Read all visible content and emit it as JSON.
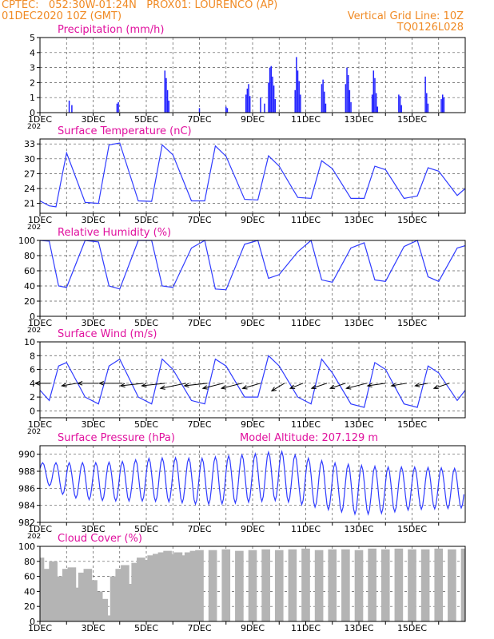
{
  "header": {
    "line1": "CPTEC:   052:30W-01:24N   PROX01: LOURENCO (AP)",
    "line2": "01DEC2020 10Z (GMT)",
    "grid_note": "Vertical Grid Line: 10Z",
    "code": "TQ0126L028"
  },
  "x_ticks": [
    "1DEC",
    "3DEC",
    "5DEC",
    "7DEC",
    "9DEC",
    "11DEC",
    "13DEC",
    "15DEC"
  ],
  "x_sublabel": "202",
  "colors": {
    "title": "#e0109e",
    "line": "#2f3bff",
    "bar": "#2020ff",
    "cloud": "#b4b4b4",
    "header": "#f08a24",
    "axis": "#000000"
  },
  "chart_data": [
    {
      "id": "precip",
      "type": "bar",
      "title": "Precipitation (mm/h)",
      "ylim": [
        0,
        5
      ],
      "yticks": [
        0,
        1,
        2,
        3,
        4,
        5
      ],
      "x_unit": "day index from 1DEC",
      "events": [
        {
          "x": 1.1,
          "y": 0.8
        },
        {
          "x": 1.2,
          "y": 0.5
        },
        {
          "x": 2.9,
          "y": 0.6
        },
        {
          "x": 2.95,
          "y": 0.7
        },
        {
          "x": 4.7,
          "y": 2.8
        },
        {
          "x": 4.75,
          "y": 2.3
        },
        {
          "x": 4.8,
          "y": 1.5
        },
        {
          "x": 4.85,
          "y": 0.8
        },
        {
          "x": 6.0,
          "y": 0.3
        },
        {
          "x": 7.0,
          "y": 0.4
        },
        {
          "x": 7.05,
          "y": 0.3
        },
        {
          "x": 7.75,
          "y": 1.2
        },
        {
          "x": 7.8,
          "y": 1.6
        },
        {
          "x": 7.85,
          "y": 1.9
        },
        {
          "x": 7.9,
          "y": 1.1
        },
        {
          "x": 8.3,
          "y": 1.0
        },
        {
          "x": 8.45,
          "y": 0.6
        },
        {
          "x": 8.6,
          "y": 2.0
        },
        {
          "x": 8.65,
          "y": 3.0
        },
        {
          "x": 8.7,
          "y": 3.1
        },
        {
          "x": 8.75,
          "y": 2.4
        },
        {
          "x": 8.8,
          "y": 1.8
        },
        {
          "x": 8.85,
          "y": 0.9
        },
        {
          "x": 9.6,
          "y": 1.5
        },
        {
          "x": 9.65,
          "y": 3.7
        },
        {
          "x": 9.7,
          "y": 2.8
        },
        {
          "x": 9.75,
          "y": 2.1
        },
        {
          "x": 9.8,
          "y": 1.2
        },
        {
          "x": 10.6,
          "y": 1.9
        },
        {
          "x": 10.65,
          "y": 2.2
        },
        {
          "x": 10.7,
          "y": 1.4
        },
        {
          "x": 10.75,
          "y": 0.6
        },
        {
          "x": 11.5,
          "y": 1.9
        },
        {
          "x": 11.55,
          "y": 3.0
        },
        {
          "x": 11.6,
          "y": 2.5
        },
        {
          "x": 11.65,
          "y": 1.5
        },
        {
          "x": 11.7,
          "y": 0.7
        },
        {
          "x": 12.5,
          "y": 1.2
        },
        {
          "x": 12.55,
          "y": 2.8
        },
        {
          "x": 12.6,
          "y": 2.3
        },
        {
          "x": 12.65,
          "y": 1.3
        },
        {
          "x": 12.7,
          "y": 0.4
        },
        {
          "x": 13.5,
          "y": 1.2
        },
        {
          "x": 13.55,
          "y": 1.1
        },
        {
          "x": 13.6,
          "y": 0.5
        },
        {
          "x": 14.5,
          "y": 2.4
        },
        {
          "x": 14.55,
          "y": 1.3
        },
        {
          "x": 14.6,
          "y": 0.6
        },
        {
          "x": 15.1,
          "y": 0.9
        },
        {
          "x": 15.15,
          "y": 1.2
        },
        {
          "x": 15.2,
          "y": 1.0
        }
      ]
    },
    {
      "id": "temp",
      "type": "line",
      "title": "Surface Temperature (nC)",
      "ylim": [
        19,
        34
      ],
      "yticks": [
        21,
        24,
        27,
        30,
        33
      ],
      "x": [
        0.0,
        0.35,
        0.6,
        1.0,
        1.7,
        2.2,
        2.6,
        3.0,
        3.7,
        4.2,
        4.6,
        5.0,
        5.7,
        6.2,
        6.6,
        7.0,
        7.7,
        8.2,
        8.6,
        9.0,
        9.7,
        10.2,
        10.6,
        11.0,
        11.7,
        12.2,
        12.6,
        13.0,
        13.7,
        14.2,
        14.6,
        15.0,
        15.7,
        16.0
      ],
      "y": [
        21.5,
        20.5,
        20.3,
        31.2,
        21.2,
        21.0,
        32.8,
        33.2,
        21.5,
        21.4,
        32.8,
        30.8,
        21.5,
        21.5,
        32.6,
        30.5,
        21.8,
        21.7,
        30.6,
        28.5,
        22.2,
        22.0,
        29.6,
        28.0,
        22.0,
        22.0,
        28.5,
        27.8,
        22.0,
        22.5,
        28.2,
        27.5,
        22.6,
        24.0
      ]
    },
    {
      "id": "rh",
      "type": "line",
      "title": "Relative Humidity (%)",
      "ylim": [
        0,
        100
      ],
      "yticks": [
        0,
        20,
        40,
        60,
        80,
        100
      ],
      "x": [
        0.0,
        0.35,
        0.7,
        1.0,
        1.7,
        2.2,
        2.6,
        3.0,
        3.7,
        4.2,
        4.6,
        5.0,
        5.7,
        6.2,
        6.6,
        7.0,
        7.7,
        8.2,
        8.6,
        9.0,
        9.7,
        10.2,
        10.6,
        11.0,
        11.7,
        12.2,
        12.6,
        13.0,
        13.7,
        14.2,
        14.6,
        15.0,
        15.7,
        16.0
      ],
      "y": [
        100,
        99,
        40,
        38,
        100,
        98,
        40,
        36,
        100,
        100,
        40,
        38,
        90,
        100,
        36,
        35,
        95,
        100,
        50,
        55,
        85,
        100,
        48,
        45,
        90,
        97,
        48,
        46,
        92,
        100,
        52,
        46,
        90,
        93
      ]
    },
    {
      "id": "wind",
      "type": "line",
      "title": "Surface Wind (m/s)",
      "ylim": [
        -1,
        10
      ],
      "yticks": [
        0,
        2,
        4,
        6,
        8,
        10
      ],
      "x": [
        0.0,
        0.35,
        0.7,
        1.0,
        1.7,
        2.2,
        2.6,
        3.0,
        3.7,
        4.2,
        4.6,
        5.0,
        5.7,
        6.2,
        6.6,
        7.0,
        7.7,
        8.2,
        8.6,
        9.0,
        9.7,
        10.2,
        10.6,
        11.0,
        11.7,
        12.2,
        12.6,
        13.0,
        13.7,
        14.2,
        14.6,
        15.0,
        15.7,
        16.0
      ],
      "y": [
        3.0,
        1.5,
        6.5,
        7.0,
        2.0,
        1.0,
        6.5,
        7.5,
        2.0,
        1.0,
        7.5,
        6.0,
        1.5,
        1.0,
        7.5,
        6.5,
        2.0,
        2.0,
        8.0,
        6.5,
        2.0,
        1.0,
        7.5,
        5.5,
        1.0,
        0.5,
        7.0,
        6.0,
        1.0,
        0.5,
        6.5,
        5.5,
        1.5,
        3.0
      ],
      "arrow_x": [
        0.4,
        1.4,
        2.2,
        3.1,
        3.9,
        4.7,
        5.5,
        6.3,
        6.9,
        7.6,
        8.3,
        9.2,
        9.9,
        10.8,
        11.5,
        12.3,
        13.0,
        13.8,
        14.6,
        15.4
      ],
      "arrow_u": [
        -6,
        -6,
        -8,
        -9,
        -9,
        -9,
        -10,
        -9,
        -8,
        -8,
        -7,
        -5,
        -5,
        -6,
        -6,
        -8,
        -7,
        -6,
        -5,
        -6
      ],
      "arrow_v": [
        0,
        -1,
        0,
        0,
        -1,
        -1,
        -2,
        -1,
        -2,
        -2,
        -2,
        -3,
        -2,
        -2,
        -2,
        -2,
        -1,
        -1,
        -1,
        -2
      ]
    },
    {
      "id": "pres",
      "type": "line",
      "title": "Surface Pressure (hPa)",
      "extra_label": "Model Altitude: 207.129  m",
      "ylim": [
        982,
        991
      ],
      "yticks": [
        982,
        984,
        986,
        988,
        990
      ],
      "diurnal": {
        "mean": [
          988.0,
          987.0,
          986.8,
          986.8,
          987.0,
          987.0,
          986.8,
          987.0,
          987.2,
          987.5,
          986.8,
          986.2,
          985.8,
          985.8,
          986.0,
          986.0,
          986.0
        ],
        "amplitude": [
          1.0,
          2.0,
          2.2,
          2.3,
          2.5,
          2.6,
          2.7,
          2.8,
          2.8,
          2.9,
          2.8,
          2.8,
          2.9,
          2.7,
          2.5,
          2.4,
          2.3
        ]
      }
    },
    {
      "id": "cloud",
      "type": "bar",
      "title": "Cloud Cover (%)",
      "ylim": [
        0,
        100
      ],
      "yticks": [
        0,
        20,
        40,
        60,
        80,
        100
      ],
      "x": [
        0.0,
        0.3,
        0.5,
        0.8,
        1.0,
        1.2,
        1.4,
        1.6,
        1.8,
        2.0,
        2.2,
        2.4,
        2.6,
        2.8,
        3.0,
        3.2,
        3.4,
        3.6,
        3.8,
        4.0,
        4.2,
        4.4,
        4.6,
        4.8,
        5.0,
        5.2,
        5.4,
        5.6,
        5.8,
        6.0,
        6.5,
        7.0,
        7.5,
        8.0,
        8.5,
        9.0,
        9.5,
        10.0,
        10.5,
        11.0,
        11.5,
        12.0,
        12.5,
        13.0,
        13.5,
        14.0,
        14.5,
        15.0,
        15.5,
        16.0
      ],
      "y": [
        85,
        70,
        80,
        60,
        70,
        72,
        45,
        65,
        70,
        55,
        40,
        30,
        8,
        60,
        70,
        75,
        50,
        78,
        85,
        82,
        88,
        90,
        92,
        94,
        90,
        92,
        88,
        92,
        94,
        95,
        95,
        96,
        94,
        95,
        96,
        95,
        96,
        97,
        95,
        96,
        96,
        95,
        97,
        96,
        97,
        96,
        96,
        97,
        96,
        97
      ]
    }
  ]
}
